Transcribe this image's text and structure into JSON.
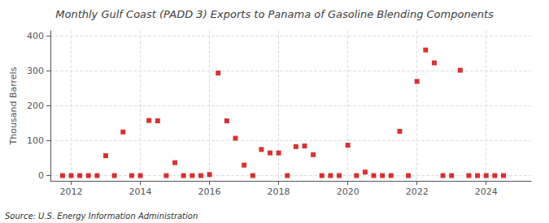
{
  "chart_data": {
    "type": "scatter",
    "title": "Monthly Gulf Coast (PADD 3) Exports to Panama of Gasoline Blending Components",
    "ylabel": "Thousand Barrels",
    "annotation": "Source: U.S. Energy Information Administration",
    "color": "#cc0000",
    "marker": "square",
    "grid": true,
    "xlim": [
      2011.4,
      2025.3
    ],
    "xticks": [
      2012,
      2014,
      2016,
      2018,
      2020,
      2022,
      2024
    ],
    "ylim": [
      -15,
      415
    ],
    "yticks": [
      0,
      100,
      200,
      300,
      400
    ],
    "x": [
      2011.75,
      2012.0,
      2012.25,
      2012.5,
      2012.75,
      2013.0,
      2013.25,
      2013.5,
      2013.75,
      2014.0,
      2014.25,
      2014.5,
      2014.75,
      2015.0,
      2015.25,
      2015.5,
      2015.75,
      2016.0,
      2016.25,
      2016.5,
      2016.75,
      2017.0,
      2017.25,
      2017.5,
      2017.75,
      2018.0,
      2018.25,
      2018.5,
      2018.75,
      2019.0,
      2019.25,
      2019.5,
      2019.75,
      2020.0,
      2020.25,
      2020.5,
      2020.75,
      2021.0,
      2021.25,
      2021.5,
      2021.75,
      2022.0,
      2022.25,
      2022.5,
      2022.75,
      2023.0,
      2023.25,
      2023.5,
      2023.75,
      2024.0,
      2024.25,
      2024.5
    ],
    "values": [
      0,
      0,
      0,
      0,
      0,
      57,
      0,
      125,
      0,
      0,
      158,
      157,
      0,
      37,
      0,
      0,
      0,
      3,
      294,
      157,
      107,
      30,
      0,
      75,
      65,
      65,
      0,
      83,
      85,
      60,
      0,
      0,
      0,
      87,
      0,
      10,
      0,
      0,
      0,
      127,
      0,
      270,
      360,
      323,
      0,
      0,
      302,
      0,
      0,
      0,
      0,
      0
    ]
  }
}
